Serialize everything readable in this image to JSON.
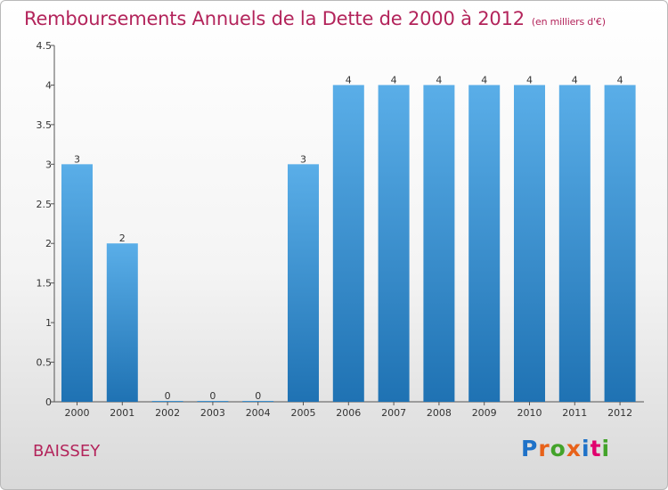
{
  "header": {
    "title": "Remboursements Annuels de la Dette de 2000 à 2012",
    "unit": "(en milliers d'€)"
  },
  "footer": {
    "location": "BAISSEY",
    "logo": "Proxiti"
  },
  "colors": {
    "title": "#b3245b",
    "bar_top": "#5aaee8",
    "bar_bottom": "#1f72b3",
    "logo_letters": [
      "#1f72c8",
      "#e8621a",
      "#43a32a",
      "#e8621a",
      "#1f72c8",
      "#e1006e",
      "#43a32a"
    ]
  },
  "chart_data": {
    "type": "bar",
    "title": "Remboursements Annuels de la Dette de 2000 à 2012",
    "subtitle": "(en milliers d'€)",
    "xlabel": "",
    "ylabel": "",
    "categories": [
      "2000",
      "2001",
      "2002",
      "2003",
      "2004",
      "2005",
      "2006",
      "2007",
      "2008",
      "2009",
      "2010",
      "2011",
      "2012"
    ],
    "values": [
      3,
      2,
      0,
      0,
      0,
      3,
      4,
      4,
      4,
      4,
      4,
      4,
      4
    ],
    "data_labels": [
      "3",
      "2",
      "0",
      "0",
      "0",
      "3",
      "4",
      "4",
      "4",
      "4",
      "4",
      "4",
      "4"
    ],
    "yticks": [
      "0",
      "0.5",
      "1",
      "1.5",
      "2",
      "2.5",
      "3",
      "3.5",
      "4",
      "4.5"
    ],
    "ylim": [
      0,
      4.5
    ],
    "grid": false,
    "legend": "none"
  }
}
